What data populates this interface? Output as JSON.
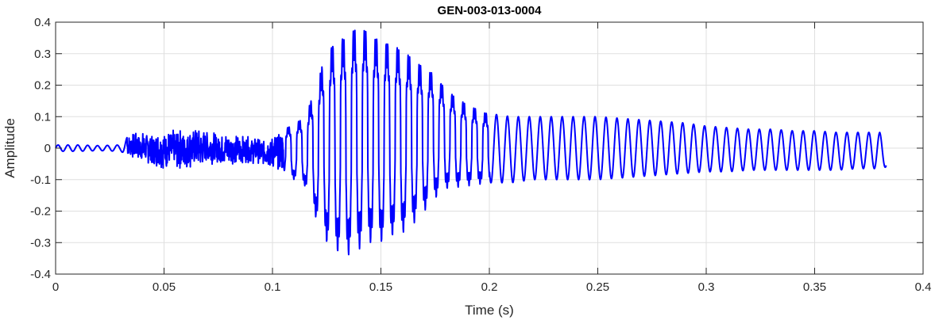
{
  "chart_data": {
    "type": "line",
    "title": "GEN-003-013-0004",
    "xlabel": "Time (s)",
    "ylabel": "Amplitude",
    "xlim": [
      0,
      0.4
    ],
    "ylim": [
      -0.4,
      0.4
    ],
    "grid": true,
    "line_color": "#0000ff",
    "x_ticks": [
      "0",
      "0.05",
      "0.1",
      "0.15",
      "0.2",
      "0.25",
      "0.3",
      "0.35",
      "0.4"
    ],
    "y_ticks": [
      "0.4",
      "0.3",
      "0.2",
      "0.1",
      "0",
      "-0.1",
      "-0.2",
      "-0.3",
      "-0.4"
    ],
    "x_tick_values": [
      0,
      0.05,
      0.1,
      0.15,
      0.2,
      0.25,
      0.3,
      0.35,
      0.4
    ],
    "y_tick_values": [
      0.4,
      0.3,
      0.2,
      0.1,
      0,
      -0.1,
      -0.2,
      -0.3,
      -0.4
    ],
    "series": [
      {
        "x": [
          0,
          0.01,
          0.02,
          0.03,
          0.035,
          0.045,
          0.055,
          0.065,
          0.075,
          0.085,
          0.095,
          0.105,
          0.115,
          0.12,
          0.125,
          0.13,
          0.135,
          0.14,
          0.145,
          0.15,
          0.155,
          0.16,
          0.165,
          0.17,
          0.175,
          0.18,
          0.19,
          0.2,
          0.21,
          0.22,
          0.23,
          0.24,
          0.25,
          0.26,
          0.27,
          0.28,
          0.29,
          0.3,
          0.31,
          0.32,
          0.33,
          0.34,
          0.35,
          0.36,
          0.37,
          0.38,
          0.383
        ],
        "y_upper": [
          0.01,
          0.01,
          0.008,
          0.01,
          0.05,
          0.05,
          0.06,
          0.06,
          0.05,
          0.04,
          0.03,
          0.06,
          0.1,
          0.2,
          0.32,
          0.35,
          0.37,
          0.4,
          0.37,
          0.35,
          0.34,
          0.32,
          0.29,
          0.26,
          0.24,
          0.19,
          0.14,
          0.11,
          0.1,
          0.1,
          0.1,
          0.1,
          0.1,
          0.095,
          0.09,
          0.085,
          0.08,
          0.07,
          0.065,
          0.06,
          0.06,
          0.055,
          0.055,
          0.05,
          0.05,
          0.05,
          0.015
        ],
        "y_lower": [
          -0.01,
          -0.01,
          -0.008,
          -0.01,
          -0.03,
          -0.06,
          -0.07,
          -0.06,
          -0.05,
          -0.05,
          -0.05,
          -0.08,
          -0.12,
          -0.22,
          -0.3,
          -0.33,
          -0.34,
          -0.32,
          -0.3,
          -0.3,
          -0.28,
          -0.27,
          -0.24,
          -0.2,
          -0.16,
          -0.13,
          -0.12,
          -0.11,
          -0.11,
          -0.1,
          -0.1,
          -0.1,
          -0.1,
          -0.095,
          -0.09,
          -0.085,
          -0.08,
          -0.075,
          -0.075,
          -0.07,
          -0.07,
          -0.07,
          -0.07,
          -0.07,
          -0.065,
          -0.065,
          -0.06
        ]
      }
    ]
  }
}
